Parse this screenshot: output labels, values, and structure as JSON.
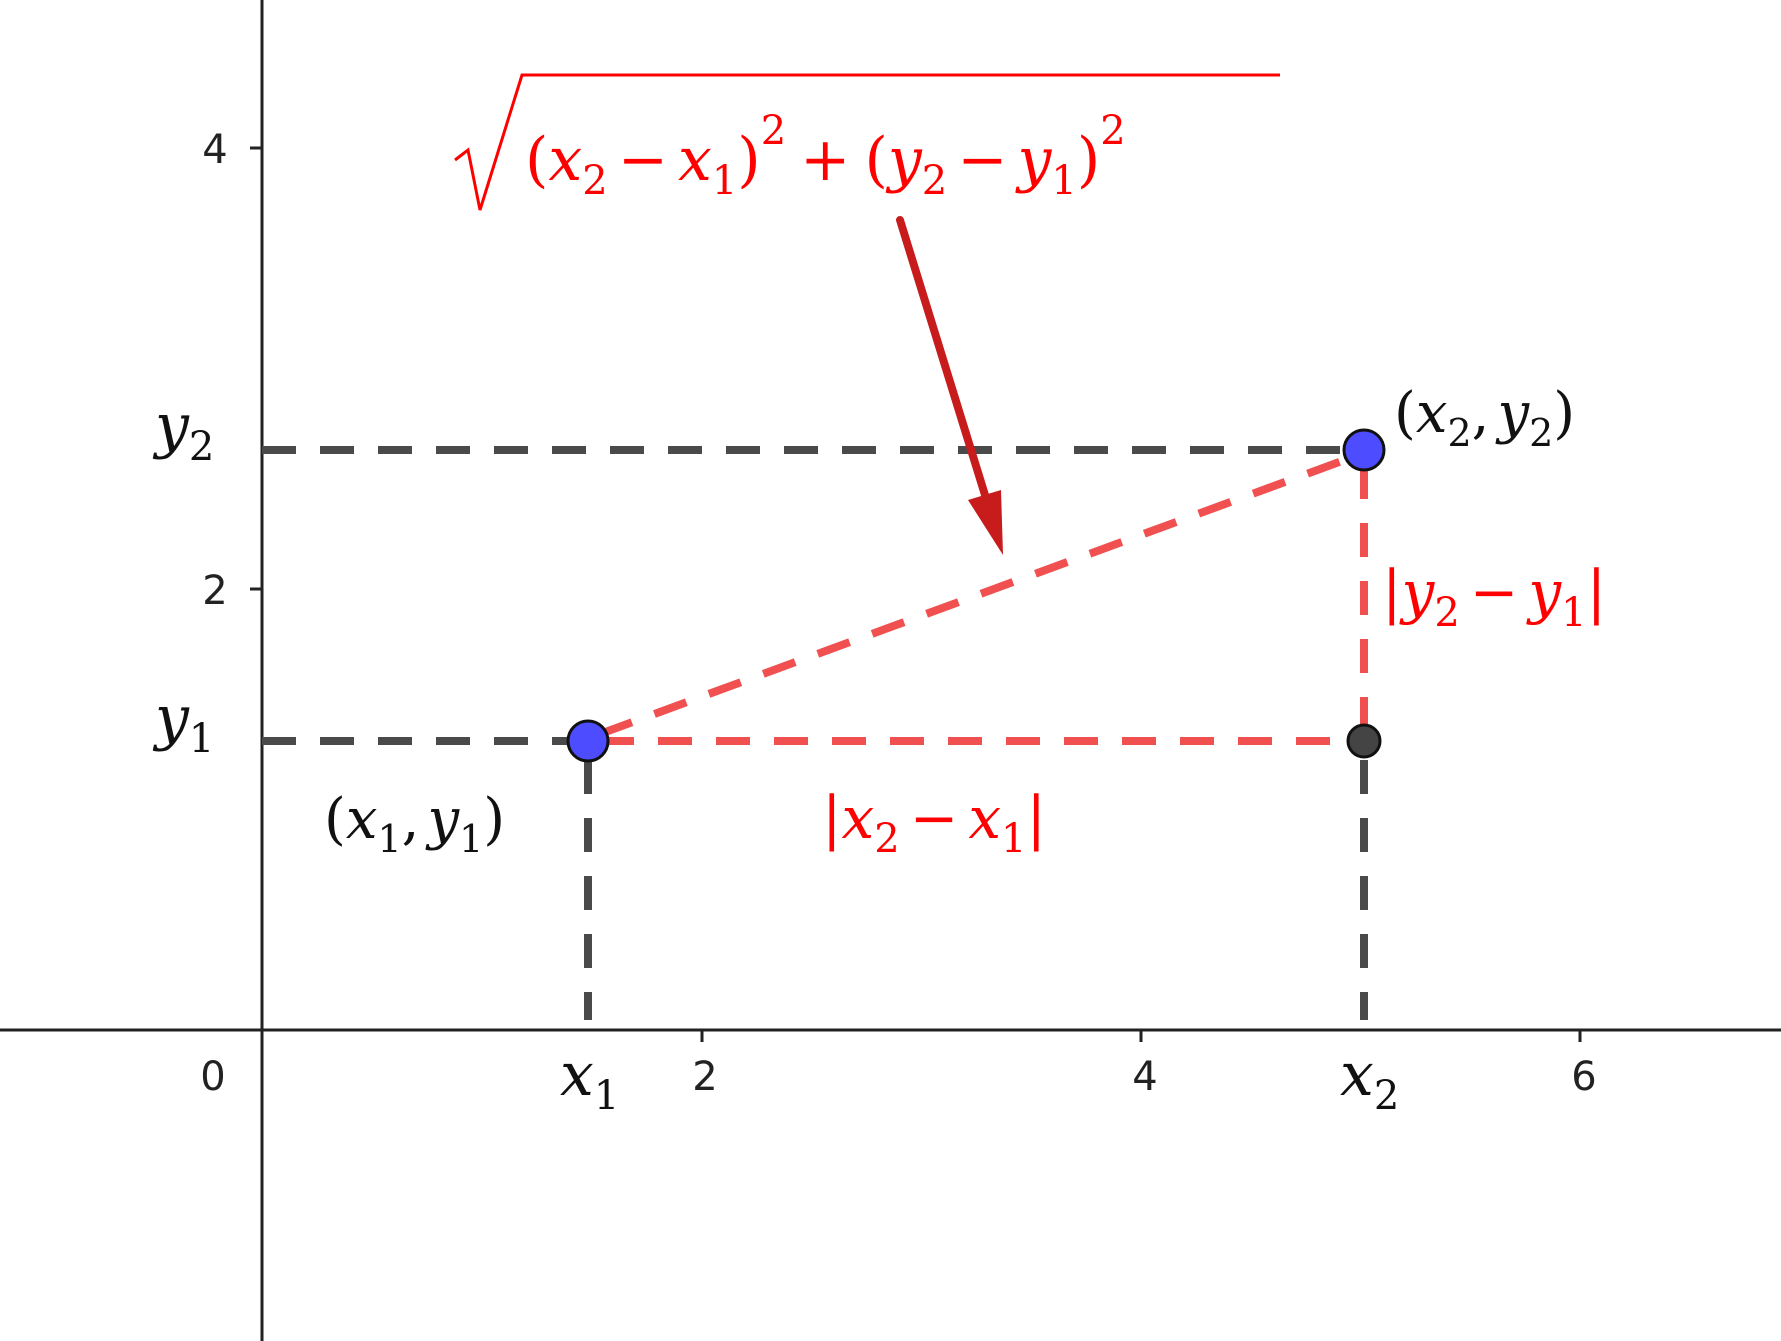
{
  "diagram": {
    "axes": {
      "origin_label": "0",
      "x_ticks": [
        {
          "value": 2,
          "label": "2"
        },
        {
          "value": 4,
          "label": "4"
        },
        {
          "value": 6,
          "label": "6"
        }
      ],
      "y_ticks": [
        {
          "value": 2,
          "label": "2"
        },
        {
          "value": 4,
          "label": "4"
        }
      ]
    },
    "points": {
      "p1": {
        "x": 1.5,
        "y": 1.3,
        "label": {
          "open": "(",
          "v1": "x",
          "s1": "1",
          "sep": ",",
          "v2": "y",
          "s2": "1",
          "close": ")"
        }
      },
      "p2": {
        "x": 5.0,
        "y": 2.6,
        "label": {
          "open": "(",
          "v1": "x",
          "s1": "2",
          "sep": ",",
          "v2": "y",
          "s2": "2",
          "close": ")"
        }
      },
      "corner": {
        "x": 5.0,
        "y": 1.3
      }
    },
    "axis_markers": {
      "x1": {
        "v": "x",
        "s": "1"
      },
      "x2": {
        "v": "x",
        "s": "2"
      },
      "y1": {
        "v": "y",
        "s": "1"
      },
      "y2": {
        "v": "y",
        "s": "2"
      }
    },
    "segment_labels": {
      "horizontal": {
        "bar": "|",
        "a": "x",
        "as": "2",
        "minus": "−",
        "b": "x",
        "bs": "1"
      },
      "vertical": {
        "bar": "|",
        "a": "y",
        "as": "2",
        "minus": "−",
        "b": "y",
        "bs": "1"
      }
    },
    "distance_formula": {
      "t1_open": "(",
      "t1_a": "x",
      "t1_as": "2",
      "t1_minus": "−",
      "t1_b": "x",
      "t1_bs": "1",
      "t1_close": ")",
      "t1_exp": "2",
      "plus": "+",
      "t2_open": "(",
      "t2_a": "y",
      "t2_as": "2",
      "t2_minus": "−",
      "t2_b": "y",
      "t2_bs": "1",
      "t2_close": ")",
      "t2_exp": "2"
    },
    "colors": {
      "axis": "#222222",
      "dashed_gray": "#4a4a4a",
      "dashed_red": "#f05050",
      "formula_red": "#ff0000",
      "arrow": "#c81c1c",
      "point_fill": "#4d4dff",
      "corner_fill": "#444444"
    }
  }
}
